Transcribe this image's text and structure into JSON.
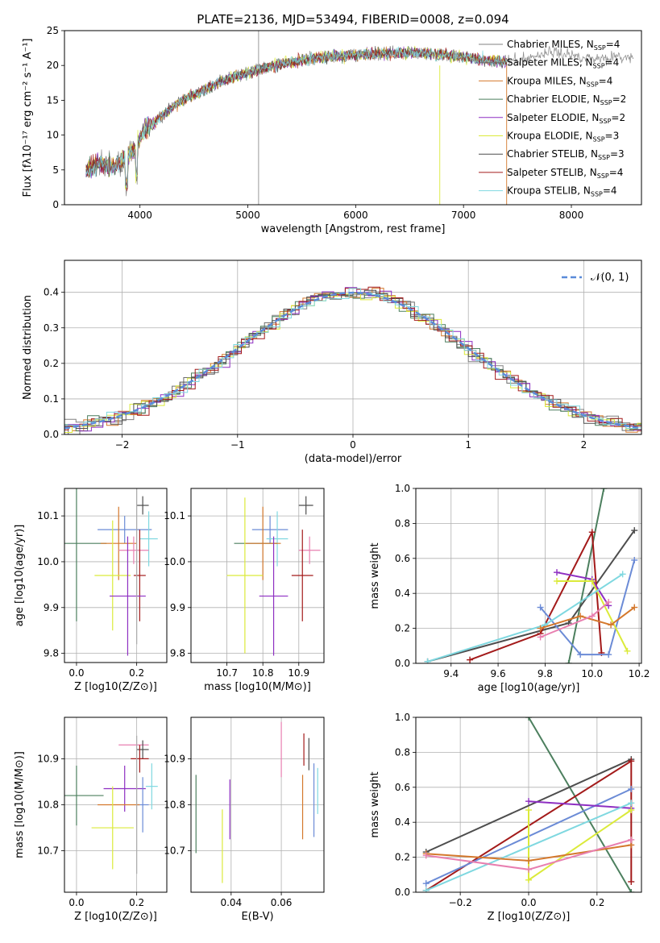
{
  "title": "PLATE=2136, MJD=53494, FIBERID=0008, z=0.094",
  "legend": [
    {
      "label": "Chabrier MILES, N",
      "sub": "SSP",
      "eq": "=4",
      "color": "#808080"
    },
    {
      "label": "Salpeter MILES, N",
      "sub": "SSP",
      "eq": "=4",
      "color": "#6d6d6d"
    },
    {
      "label": "Kroupa MILES, N",
      "sub": "SSP",
      "eq": "=4",
      "color": "#d4782c"
    },
    {
      "label": "Chabrier ELODIE, N",
      "sub": "SSP",
      "eq": "=2",
      "color": "#4c7f5e"
    },
    {
      "label": "Salpeter ELODIE, N",
      "sub": "SSP",
      "eq": "=2",
      "color": "#8e2fc2"
    },
    {
      "label": "Kroupa ELODIE, N",
      "sub": "SSP",
      "eq": "=3",
      "color": "#dbea3a"
    },
    {
      "label": "Chabrier STELIB, N",
      "sub": "SSP",
      "eq": "=3",
      "color": "#4d4d4d"
    },
    {
      "label": "Salpeter STELIB, N",
      "sub": "SSP",
      "eq": "=4",
      "color": "#a31a1a"
    },
    {
      "label": "Kroupa STELIB, N",
      "sub": "SSP",
      "eq": "=4",
      "color": "#7fd8e0"
    }
  ],
  "hist_legend": "𝒩(0, 1)",
  "chart_data": [
    {
      "id": "spectrum",
      "type": "line",
      "title": "PLATE=2136, MJD=53494, FIBERID=0008, z=0.094",
      "xlabel": "wavelength [Angstrom, rest frame]",
      "ylabel": "Flux [fλ10⁻¹⁷ erg cm⁻² s⁻¹ A⁻¹]",
      "xlim": [
        3300,
        8650
      ],
      "ylim": [
        0,
        25
      ],
      "xticks": [
        4000,
        5000,
        6000,
        7000,
        8000
      ],
      "yticks": [
        0,
        5,
        10,
        15,
        20,
        25
      ],
      "grid": false,
      "legend_position": "top-right",
      "continuum": {
        "x": [
          3500,
          3650,
          3750,
          3850,
          3950,
          4050,
          4150,
          4300,
          4450,
          4600,
          4800,
          5000,
          5200,
          5400,
          5600,
          5800,
          6000,
          6200,
          6400,
          6600,
          6800,
          7000,
          7200,
          7400
        ],
        "y": [
          5,
          6,
          5.5,
          6.5,
          8,
          11,
          12,
          14,
          15.5,
          16.5,
          18,
          19,
          19.8,
          20.5,
          21,
          21.3,
          21.5,
          21.7,
          21.8,
          21.8,
          21.6,
          21.2,
          20.8,
          20.5
        ]
      },
      "extended_series_x": [
        7400,
        7600,
        7800,
        8000,
        8200,
        8400,
        8600
      ],
      "extended_series_y": [
        20.5,
        21,
        22,
        21.5,
        21,
        21.2,
        21
      ]
    },
    {
      "id": "residual_histogram",
      "type": "histogram",
      "xlabel": "(data-model)/error",
      "ylabel": "Normed distribution",
      "xlim": [
        -2.5,
        2.5
      ],
      "ylim": [
        0,
        0.49
      ],
      "xticks": [
        -2,
        -1,
        0,
        1,
        2
      ],
      "yticks": [
        0.0,
        0.1,
        0.2,
        0.3,
        0.4
      ],
      "grid": true,
      "legend_position": "top-right",
      "reference_curve": "N(0,1)"
    },
    {
      "id": "age_vs_Z",
      "type": "errorbar",
      "xlabel": "Z [log10(Z/Z⊙)]",
      "ylabel": "age  [log10(age/yr)]",
      "xlim": [
        -0.04,
        0.3
      ],
      "ylim": [
        9.78,
        10.16
      ],
      "xticks": [
        0.0,
        0.2
      ],
      "yticks": [
        9.8,
        9.9,
        10.0,
        10.1
      ],
      "points": [
        {
          "x": 0.22,
          "y": 10.123,
          "xerr": 0.02,
          "yerr": 0.02,
          "color": "#4d4d4d"
        },
        {
          "x": 0.16,
          "y": 10.07,
          "xerr": 0.09,
          "yerr": 0.03,
          "color": "#6b8bd6"
        },
        {
          "x": 0.24,
          "y": 10.05,
          "xerr": 0.03,
          "yerr": 0.06,
          "color": "#7fd8e0"
        },
        {
          "x": 0.0,
          "y": 10.04,
          "xerr": 0.1,
          "yerr": 0.17,
          "color": "#4c7f5e"
        },
        {
          "x": 0.14,
          "y": 10.04,
          "xerr": 0.06,
          "yerr": 0.08,
          "color": "#d4782c"
        },
        {
          "x": 0.19,
          "y": 10.025,
          "xerr": 0.05,
          "yerr": 0.03,
          "color": "#e87fb0"
        },
        {
          "x": 0.21,
          "y": 9.97,
          "xerr": 0.02,
          "yerr": 0.1,
          "color": "#a31a1a"
        },
        {
          "x": 0.12,
          "y": 9.97,
          "xerr": 0.06,
          "yerr": 0.12,
          "color": "#dbea3a"
        },
        {
          "x": 0.17,
          "y": 9.925,
          "xerr": 0.06,
          "yerr": 0.13,
          "color": "#8e2fc2"
        },
        {
          "x": 0.2,
          "y": 10.02,
          "xerr": 0.0,
          "yerr": 0.2,
          "color": "#aaaaaa"
        }
      ]
    },
    {
      "id": "age_vs_mass",
      "type": "errorbar",
      "xlabel": "mass [log10(M/M⊙)]",
      "ylabel": "",
      "xlim": [
        10.6,
        10.97
      ],
      "ylim": [
        9.78,
        10.16
      ],
      "xticks": [
        10.7,
        10.8,
        10.9
      ],
      "yticks": [
        9.8,
        9.9,
        10.0,
        10.1
      ],
      "points": [
        {
          "x": 10.92,
          "y": 10.123,
          "xerr": 0.02,
          "yerr": 0.02,
          "color": "#4d4d4d"
        },
        {
          "x": 10.82,
          "y": 10.07,
          "xerr": 0.05,
          "yerr": 0.03,
          "color": "#6b8bd6"
        },
        {
          "x": 10.84,
          "y": 10.05,
          "xerr": 0.03,
          "yerr": 0.06,
          "color": "#7fd8e0"
        },
        {
          "x": 10.78,
          "y": 10.04,
          "xerr": 0.06,
          "yerr": 0.0,
          "color": "#4c7f5e"
        },
        {
          "x": 10.8,
          "y": 10.04,
          "xerr": 0.05,
          "yerr": 0.08,
          "color": "#d4782c"
        },
        {
          "x": 10.93,
          "y": 10.025,
          "xerr": 0.03,
          "yerr": 0.03,
          "color": "#e87fb0"
        },
        {
          "x": 10.91,
          "y": 9.97,
          "xerr": 0.03,
          "yerr": 0.1,
          "color": "#a31a1a"
        },
        {
          "x": 10.75,
          "y": 9.97,
          "xerr": 0.05,
          "yerr": 0.17,
          "color": "#dbea3a"
        },
        {
          "x": 10.83,
          "y": 9.925,
          "xerr": 0.04,
          "yerr": 0.13,
          "color": "#8e2fc2"
        }
      ]
    },
    {
      "id": "massweight_vs_age",
      "type": "line",
      "xlabel": "age  [log10(age/yr)]",
      "ylabel": "mass weight",
      "xlim": [
        9.25,
        10.21
      ],
      "ylim": [
        0,
        1
      ],
      "xticks": [
        9.4,
        9.6,
        9.8,
        10.0,
        10.2
      ],
      "yticks": [
        0.0,
        0.2,
        0.4,
        0.6,
        0.8,
        1.0
      ],
      "series": [
        {
          "color": "#4c7f5e",
          "x": [
            9.9,
            10.05
          ],
          "y": [
            0.0,
            1.0
          ]
        },
        {
          "color": "#4d4d4d",
          "x": [
            9.3,
            9.9,
            10.18
          ],
          "y": [
            0.01,
            0.23,
            0.76
          ]
        },
        {
          "color": "#a31a1a",
          "x": [
            9.48,
            9.78,
            10.0,
            10.04
          ],
          "y": [
            0.02,
            0.17,
            0.75,
            0.06
          ]
        },
        {
          "color": "#6b8bd6",
          "x": [
            9.78,
            9.95,
            10.07,
            10.18
          ],
          "y": [
            0.32,
            0.05,
            0.05,
            0.59
          ]
        },
        {
          "color": "#8e2fc2",
          "x": [
            9.85,
            10.0,
            10.07
          ],
          "y": [
            0.52,
            0.48,
            0.33
          ]
        },
        {
          "color": "#dbea3a",
          "x": [
            9.85,
            10.0,
            10.15
          ],
          "y": [
            0.47,
            0.47,
            0.07
          ]
        },
        {
          "color": "#7fd8e0",
          "x": [
            9.3,
            9.8,
            10.13
          ],
          "y": [
            0.01,
            0.22,
            0.51
          ]
        },
        {
          "color": "#d4782c",
          "x": [
            9.78,
            9.95,
            10.08,
            10.18
          ],
          "y": [
            0.2,
            0.27,
            0.22,
            0.32
          ]
        },
        {
          "color": "#e87fb0",
          "x": [
            9.78,
            10.0,
            10.07
          ],
          "y": [
            0.15,
            0.27,
            0.35
          ]
        }
      ]
    },
    {
      "id": "mass_vs_Z",
      "type": "errorbar",
      "xlabel": "Z [log10(Z/Z⊙)]",
      "ylabel": "mass [log10(M/M⊙)]",
      "xlim": [
        -0.04,
        0.3
      ],
      "ylim": [
        10.61,
        10.99
      ],
      "xticks": [
        0.0,
        0.2
      ],
      "yticks": [
        10.7,
        10.8,
        10.9
      ],
      "points": [
        {
          "x": 0.19,
          "y": 10.93,
          "xerr": 0.05,
          "yerr": 0.0,
          "color": "#e87fb0"
        },
        {
          "x": 0.22,
          "y": 10.92,
          "xerr": 0.02,
          "yerr": 0.02,
          "color": "#4d4d4d"
        },
        {
          "x": 0.21,
          "y": 10.9,
          "xerr": 0.03,
          "yerr": 0.03,
          "color": "#a31a1a"
        },
        {
          "x": 0.25,
          "y": 10.84,
          "xerr": 0.02,
          "yerr": 0.05,
          "color": "#7fd8e0"
        },
        {
          "x": 0.16,
          "y": 10.835,
          "xerr": 0.07,
          "yerr": 0.05,
          "color": "#8e2fc2"
        },
        {
          "x": 0.0,
          "y": 10.82,
          "xerr": 0.09,
          "yerr": 0.065,
          "color": "#4c7f5e"
        },
        {
          "x": 0.22,
          "y": 10.8,
          "xerr": 0.02,
          "yerr": 0.06,
          "color": "#6b8bd6"
        },
        {
          "x": 0.14,
          "y": 10.8,
          "xerr": 0.07,
          "yerr": 0.0,
          "color": "#d4782c"
        },
        {
          "x": 0.12,
          "y": 10.75,
          "xerr": 0.07,
          "yerr": 0.09,
          "color": "#dbea3a"
        },
        {
          "x": 0.2,
          "y": 10.8,
          "xerr": 0.0,
          "yerr": 0.15,
          "color": "#aaaaaa"
        }
      ]
    },
    {
      "id": "mass_vs_ebv",
      "type": "errorbar",
      "xlabel": "E(B-V)",
      "ylabel": "",
      "xlim": [
        0.024,
        0.077
      ],
      "ylim": [
        10.61,
        10.99
      ],
      "xticks": [
        0.04,
        0.06
      ],
      "yticks": [
        10.7,
        10.8,
        10.9
      ],
      "points": [
        {
          "x": 0.026,
          "y": 10.78,
          "xerr": 0.0,
          "yerr": 0.085,
          "color": "#4c7f5e"
        },
        {
          "x": 0.0365,
          "y": 10.71,
          "xerr": 0.0,
          "yerr": 0.08,
          "color": "#dbea3a"
        },
        {
          "x": 0.0395,
          "y": 10.79,
          "xerr": 0.0,
          "yerr": 0.065,
          "color": "#8e2fc2"
        },
        {
          "x": 0.06,
          "y": 10.92,
          "xerr": 0.0,
          "yerr": 0.06,
          "color": "#e87fb0"
        },
        {
          "x": 0.0685,
          "y": 10.795,
          "xerr": 0.0,
          "yerr": 0.07,
          "color": "#d4782c"
        },
        {
          "x": 0.069,
          "y": 10.92,
          "xerr": 0.0,
          "yerr": 0.035,
          "color": "#a31a1a"
        },
        {
          "x": 0.071,
          "y": 10.91,
          "xerr": 0.0,
          "yerr": 0.035,
          "color": "#4d4d4d"
        },
        {
          "x": 0.073,
          "y": 10.81,
          "xerr": 0.0,
          "yerr": 0.08,
          "color": "#6b8bd6"
        },
        {
          "x": 0.0745,
          "y": 10.83,
          "xerr": 0.0,
          "yerr": 0.05,
          "color": "#7fd8e0"
        }
      ]
    },
    {
      "id": "massweight_vs_Z",
      "type": "line",
      "xlabel": "Z [log10(Z/Z⊙)]",
      "ylabel": "mass weight",
      "xlim": [
        -0.33,
        0.33
      ],
      "ylim": [
        0,
        1
      ],
      "xticks": [
        -0.2,
        0.0,
        0.2
      ],
      "yticks": [
        0.0,
        0.2,
        0.4,
        0.6,
        0.8,
        1.0
      ],
      "series": [
        {
          "color": "#4c7f5e",
          "x": [
            0.0,
            0.3
          ],
          "y": [
            1.0,
            0.0
          ]
        },
        {
          "color": "#4d4d4d",
          "x": [
            -0.3,
            0.3
          ],
          "y": [
            0.23,
            0.76
          ]
        },
        {
          "color": "#a31a1a",
          "x": [
            -0.3,
            0.3,
            0.3
          ],
          "y": [
            0.01,
            0.75,
            0.06
          ]
        },
        {
          "color": "#6b8bd6",
          "x": [
            -0.3,
            0.3
          ],
          "y": [
            0.05,
            0.59
          ]
        },
        {
          "color": "#8e2fc2",
          "x": [
            0.0,
            0.3
          ],
          "y": [
            0.52,
            0.48
          ]
        },
        {
          "color": "#dbea3a",
          "x": [
            0.0,
            0.0,
            0.3
          ],
          "y": [
            0.47,
            0.07,
            0.47
          ]
        },
        {
          "color": "#7fd8e0",
          "x": [
            -0.3,
            0.3
          ],
          "y": [
            0.01,
            0.51
          ]
        },
        {
          "color": "#d4782c",
          "x": [
            -0.3,
            0.0,
            0.3
          ],
          "y": [
            0.22,
            0.18,
            0.27
          ]
        },
        {
          "color": "#e87fb0",
          "x": [
            -0.3,
            0.0,
            0.3
          ],
          "y": [
            0.21,
            0.13,
            0.3
          ]
        }
      ]
    }
  ]
}
